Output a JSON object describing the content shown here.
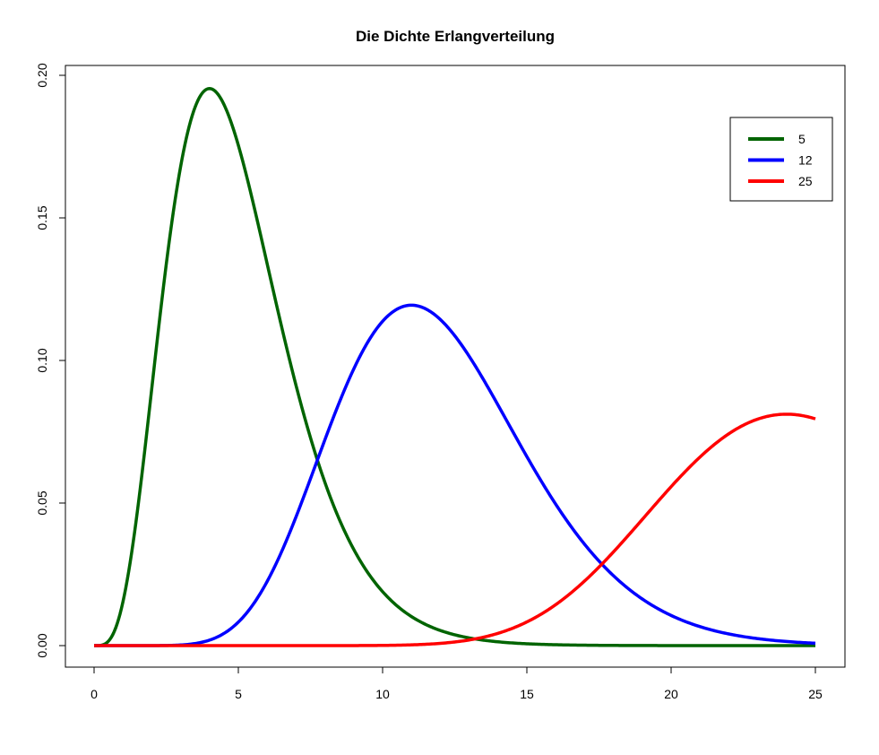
{
  "chart_data": {
    "type": "line",
    "title": "Die Dichte Erlangverteilung",
    "xlabel": "",
    "ylabel": "",
    "xlim": [
      0,
      25
    ],
    "ylim": [
      0,
      0.2
    ],
    "xticks": [
      0,
      5,
      10,
      15,
      20,
      25
    ],
    "xtick_labels": [
      "0",
      "5",
      "10",
      "15",
      "20",
      "25"
    ],
    "yticks": [
      0,
      0.05,
      0.1,
      0.15,
      0.2
    ],
    "ytick_labels": [
      "0.00",
      "0.05",
      "0.10",
      "0.15",
      "0.20"
    ],
    "grid": false,
    "legend_position": "top-right",
    "distribution": "erlang",
    "rate": 1,
    "series": [
      {
        "name": "5",
        "shape": 5,
        "color": "#006400",
        "peak": {
          "x": 4,
          "y": 0.195
        }
      },
      {
        "name": "12",
        "shape": 12,
        "color": "#0000FF",
        "peak": {
          "x": 11,
          "y": 0.119
        }
      },
      {
        "name": "25",
        "shape": 25,
        "color": "#FF0000",
        "peak": {
          "x": 24,
          "y": 0.081
        }
      }
    ]
  }
}
